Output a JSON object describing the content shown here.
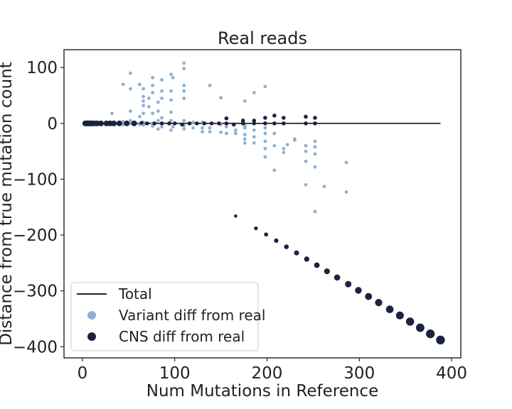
{
  "chart_data": {
    "type": "scatter",
    "title": "Real reads",
    "xlabel": "Num Mutations in Reference",
    "ylabel": "Distance from true mutation count",
    "xlim": [
      -20,
      410
    ],
    "ylim": [
      -420,
      132
    ],
    "xticks": [
      0,
      100,
      200,
      300,
      400
    ],
    "yticks": [
      100,
      0,
      -100,
      -200,
      -300,
      -400
    ],
    "grid": false,
    "legend_position": "lower-left",
    "legend": [
      "Total",
      "Variant diff from real",
      "CNS diff from real"
    ],
    "colors": {
      "total": "#222222",
      "variant": "#8fb0d3",
      "cns": "#1c2340",
      "axes": "#222222"
    },
    "series": [
      {
        "name": "Total",
        "kind": "line",
        "x": [
          0,
          388
        ],
        "y": [
          0,
          0
        ]
      },
      {
        "name": "Variant diff from real",
        "kind": "scatter",
        "points": [
          [
            2,
            0
          ],
          [
            3,
            1
          ],
          [
            4,
            0
          ],
          [
            5,
            -1
          ],
          [
            6,
            0
          ],
          [
            7,
            1
          ],
          [
            8,
            0
          ],
          [
            9,
            0
          ],
          [
            10,
            0
          ],
          [
            12,
            0
          ],
          [
            15,
            0
          ],
          [
            18,
            0
          ],
          [
            22,
            0
          ],
          [
            25,
            1
          ],
          [
            28,
            0
          ],
          [
            32,
            18
          ],
          [
            32,
            0
          ],
          [
            36,
            0
          ],
          [
            44,
            70
          ],
          [
            44,
            3
          ],
          [
            44,
            -2
          ],
          [
            52,
            90
          ],
          [
            52,
            62
          ],
          [
            52,
            22
          ],
          [
            52,
            5
          ],
          [
            52,
            0
          ],
          [
            62,
            70
          ],
          [
            62,
            12
          ],
          [
            62,
            -2
          ],
          [
            66,
            62
          ],
          [
            66,
            48
          ],
          [
            66,
            40
          ],
          [
            66,
            32
          ],
          [
            66,
            18
          ],
          [
            66,
            2
          ],
          [
            66,
            -3
          ],
          [
            72,
            45
          ],
          [
            72,
            30
          ],
          [
            76,
            82
          ],
          [
            76,
            68
          ],
          [
            76,
            55
          ],
          [
            76,
            18
          ],
          [
            76,
            0
          ],
          [
            76,
            -5
          ],
          [
            82,
            38
          ],
          [
            82,
            22
          ],
          [
            82,
            5
          ],
          [
            82,
            -10
          ],
          [
            86,
            78
          ],
          [
            86,
            58
          ],
          [
            86,
            45
          ],
          [
            86,
            10
          ],
          [
            86,
            -6
          ],
          [
            96,
            88
          ],
          [
            96,
            58
          ],
          [
            96,
            42
          ],
          [
            96,
            20
          ],
          [
            96,
            5
          ],
          [
            96,
            -12
          ],
          [
            98,
            82
          ],
          [
            98,
            -6
          ],
          [
            110,
            108
          ],
          [
            110,
            98
          ],
          [
            110,
            68
          ],
          [
            110,
            58
          ],
          [
            110,
            45
          ],
          [
            110,
            5
          ],
          [
            110,
            -4
          ],
          [
            110,
            -10
          ],
          [
            120,
            2
          ],
          [
            120,
            -8
          ],
          [
            130,
            2
          ],
          [
            130,
            -8
          ],
          [
            130,
            -15
          ],
          [
            138,
            68
          ],
          [
            138,
            -8
          ],
          [
            138,
            -15
          ],
          [
            150,
            46
          ],
          [
            150,
            -2
          ],
          [
            150,
            -16
          ],
          [
            156,
            -6
          ],
          [
            156,
            -18
          ],
          [
            166,
            -12
          ],
          [
            166,
            -18
          ],
          [
            176,
            40
          ],
          [
            176,
            -4
          ],
          [
            176,
            -8
          ],
          [
            176,
            -20
          ],
          [
            176,
            -28
          ],
          [
            176,
            -35
          ],
          [
            186,
            55
          ],
          [
            186,
            -12
          ],
          [
            186,
            -24
          ],
          [
            186,
            -35
          ],
          [
            198,
            66
          ],
          [
            198,
            -8
          ],
          [
            198,
            -18
          ],
          [
            198,
            -32
          ],
          [
            198,
            -45
          ],
          [
            198,
            -60
          ],
          [
            208,
            -18
          ],
          [
            208,
            -40
          ],
          [
            208,
            -84
          ],
          [
            218,
            -45
          ],
          [
            218,
            -52
          ],
          [
            222,
            -38
          ],
          [
            230,
            -28
          ],
          [
            230,
            -30
          ],
          [
            242,
            -40
          ],
          [
            242,
            -50
          ],
          [
            242,
            -68
          ],
          [
            242,
            -110
          ],
          [
            252,
            -32
          ],
          [
            252,
            -42
          ],
          [
            252,
            -55
          ],
          [
            252,
            -78
          ],
          [
            252,
            -158
          ],
          [
            262,
            -113
          ],
          [
            286,
            -70
          ],
          [
            286,
            -123
          ]
        ]
      },
      {
        "name": "CNS diff from real",
        "kind": "scatter",
        "points": [
          [
            3,
            0
          ],
          [
            4,
            0
          ],
          [
            5,
            0
          ],
          [
            6,
            0
          ],
          [
            7,
            0
          ],
          [
            8,
            0
          ],
          [
            9,
            0
          ],
          [
            10,
            0
          ],
          [
            11,
            0
          ],
          [
            13,
            0
          ],
          [
            16,
            0
          ],
          [
            20,
            0
          ],
          [
            26,
            0
          ],
          [
            30,
            0
          ],
          [
            34,
            0
          ],
          [
            40,
            0
          ],
          [
            48,
            0
          ],
          [
            56,
            0
          ],
          [
            64,
            1
          ],
          [
            70,
            0
          ],
          [
            78,
            0
          ],
          [
            86,
            0
          ],
          [
            94,
            0
          ],
          [
            100,
            0
          ],
          [
            108,
            -2
          ],
          [
            116,
            0
          ],
          [
            124,
            0
          ],
          [
            132,
            0
          ],
          [
            140,
            0
          ],
          [
            148,
            0
          ],
          [
            156,
            0
          ],
          [
            156,
            9
          ],
          [
            164,
            -2
          ],
          [
            174,
            0
          ],
          [
            174,
            5
          ],
          [
            186,
            0
          ],
          [
            186,
            5
          ],
          [
            198,
            0
          ],
          [
            198,
            10
          ],
          [
            208,
            0
          ],
          [
            208,
            14
          ],
          [
            218,
            0
          ],
          [
            218,
            10
          ],
          [
            242,
            0
          ],
          [
            242,
            12
          ],
          [
            252,
            0
          ],
          [
            252,
            10
          ],
          [
            166,
            -166
          ],
          [
            188,
            -188
          ],
          [
            199,
            -199
          ],
          [
            210,
            -210
          ],
          [
            221,
            -221
          ],
          [
            232,
            -232
          ],
          [
            243,
            -243
          ],
          [
            254,
            -254
          ],
          [
            265,
            -265
          ],
          [
            276,
            -276
          ],
          [
            288,
            -288
          ],
          [
            299,
            -299
          ],
          [
            310,
            -310
          ],
          [
            321,
            -321
          ],
          [
            333,
            -333
          ],
          [
            344,
            -344
          ],
          [
            355,
            -355
          ],
          [
            366,
            -366
          ],
          [
            377,
            -377
          ],
          [
            388,
            -388
          ]
        ]
      }
    ]
  }
}
